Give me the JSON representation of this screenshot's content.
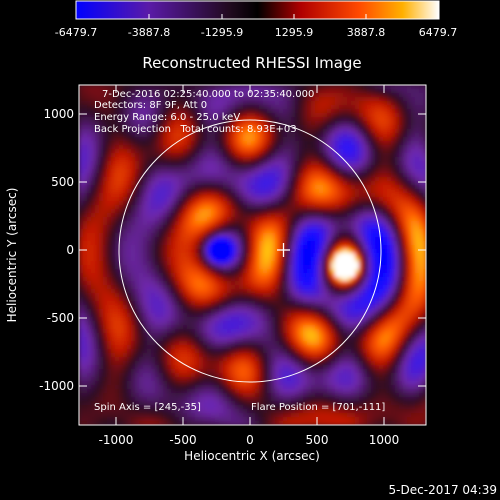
{
  "colorbar": {
    "ticks": [
      "-6479.7",
      "-3887.8",
      "-1295.9",
      "1295.9",
      "3887.8",
      "6479.7"
    ],
    "range": [
      -6479.7,
      6479.7
    ],
    "colormap": [
      "#0000ff",
      "#7a2aa8",
      "#2a0a24",
      "#000000",
      "#b00000",
      "#ff4000",
      "#ffa000",
      "#ffffff"
    ]
  },
  "plot": {
    "title": "Reconstructed RHESSI Image",
    "xlabel": "Heliocentric X (arcsec)",
    "ylabel": "Heliocentric Y (arcsec)",
    "xticks": [
      "-1000",
      "-500",
      "0",
      "500",
      "1000"
    ],
    "yticks": [
      "1000",
      "500",
      "0",
      "-500",
      "-1000"
    ],
    "info": [
      "7-Dec-2016 02:25:40.000 to 02:35:40.000",
      "Detectors: 8F 9F, Att 0",
      "Energy Range: 6.0 - 25.0 keV",
      "Back Projection   Total counts: 8.93E+03"
    ],
    "spin_axis": "Spin Axis = [245,-35]",
    "flare_position": "Flare Position = [701,-111]",
    "solar_disk_radius_arcsec": 975,
    "crosshair_arcsec": [
      245,
      -35
    ]
  },
  "footer": {
    "timestamp": "5-Dec-2017 04:39"
  },
  "chart_data": {
    "type": "heatmap",
    "title": "Reconstructed RHESSI Image",
    "xlabel": "Heliocentric X (arcsec)",
    "ylabel": "Heliocentric Y (arcsec)",
    "xlim": [
      -1280,
      1300
    ],
    "ylim": [
      -1300,
      1240
    ],
    "x_ticks": [
      -1000,
      -500,
      0,
      500,
      1000
    ],
    "y_ticks": [
      -1000,
      -500,
      0,
      500,
      1000
    ],
    "value_range": [
      -6479.7,
      6479.7
    ],
    "features": [
      {
        "kind": "positive-peak",
        "x": 701,
        "y": -111,
        "value": 6479.7
      },
      {
        "kind": "negative-peak",
        "x": -240,
        "y": 5,
        "value": -6479.7
      }
    ]
  }
}
